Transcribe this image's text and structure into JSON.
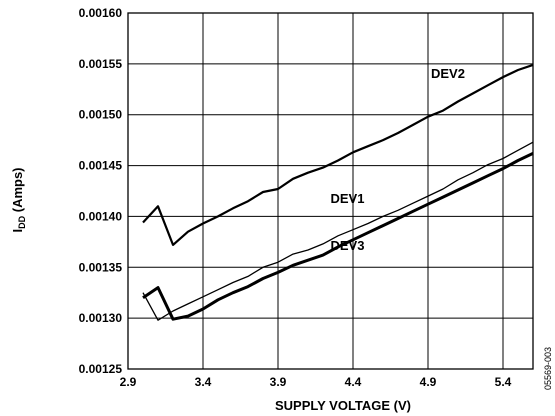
{
  "chart_data": {
    "type": "line",
    "xlabel": "SUPPLY VOLTAGE (V)",
    "ylabel_main": "I",
    "ylabel_sub": "DD",
    "ylabel_suffix": " (Amps)",
    "xlim": [
      2.9,
      5.6
    ],
    "ylim": [
      0.00125,
      0.0016
    ],
    "x_ticks": [
      2.9,
      3.4,
      3.9,
      4.4,
      4.9,
      5.4
    ],
    "x_tick_labels": [
      "2.9",
      "3.4",
      "3.9",
      "4.4",
      "4.9",
      "5.4"
    ],
    "y_ticks": [
      0.00125,
      0.0013,
      0.00135,
      0.0014,
      0.00145,
      0.0015,
      0.00155,
      0.0016
    ],
    "y_tick_labels": [
      "0.00125",
      "0.00130",
      "0.00135",
      "0.00140",
      "0.00145",
      "0.00150",
      "0.00155",
      "0.00160"
    ],
    "grid": true,
    "figure_id": "05569-003",
    "series": [
      {
        "name": "DEV2",
        "line_weight": "medium",
        "x": [
          3.0,
          3.1,
          3.2,
          3.3,
          3.4,
          3.5,
          3.6,
          3.7,
          3.8,
          3.9,
          4.0,
          4.1,
          4.2,
          4.3,
          4.4,
          4.5,
          4.6,
          4.7,
          4.8,
          4.9,
          5.0,
          5.1,
          5.2,
          5.3,
          5.4,
          5.5,
          5.6
        ],
        "y": [
          0.001394,
          0.00141,
          0.001372,
          0.001385,
          0.001393,
          0.0014,
          0.001408,
          0.001415,
          0.001424,
          0.001427,
          0.001437,
          0.001443,
          0.001448,
          0.001455,
          0.001463,
          0.001469,
          0.001475,
          0.001482,
          0.00149,
          0.001498,
          0.001504,
          0.001513,
          0.001521,
          0.001529,
          0.001537,
          0.001544,
          0.001549
        ]
      },
      {
        "name": "DEV1",
        "line_weight": "thin",
        "x": [
          3.0,
          3.1,
          3.2,
          3.3,
          3.4,
          3.5,
          3.6,
          3.7,
          3.8,
          3.9,
          4.0,
          4.1,
          4.2,
          4.3,
          4.4,
          4.5,
          4.6,
          4.7,
          4.8,
          4.9,
          5.0,
          5.1,
          5.2,
          5.3,
          5.4,
          5.5,
          5.6
        ],
        "y": [
          0.001325,
          0.001298,
          0.001307,
          0.001314,
          0.001321,
          0.001328,
          0.001335,
          0.001341,
          0.00135,
          0.001355,
          0.001363,
          0.001367,
          0.001373,
          0.001381,
          0.001387,
          0.001393,
          0.0014,
          0.001406,
          0.001413,
          0.00142,
          0.001427,
          0.001436,
          0.001443,
          0.001451,
          0.001457,
          0.001465,
          0.001473
        ]
      },
      {
        "name": "DEV3",
        "line_weight": "thick",
        "x": [
          3.0,
          3.1,
          3.2,
          3.3,
          3.4,
          3.5,
          3.6,
          3.7,
          3.8,
          3.9,
          4.0,
          4.1,
          4.2,
          4.3,
          4.4,
          4.5,
          4.6,
          4.7,
          4.8,
          4.9,
          5.0,
          5.1,
          5.2,
          5.3,
          5.4,
          5.5,
          5.6
        ],
        "y": [
          0.00132,
          0.00133,
          0.001299,
          0.001302,
          0.001309,
          0.001318,
          0.001325,
          0.001331,
          0.001339,
          0.001345,
          0.001352,
          0.001357,
          0.001362,
          0.00137,
          0.001377,
          0.001384,
          0.001391,
          0.001398,
          0.001405,
          0.001412,
          0.001419,
          0.001426,
          0.001433,
          0.00144,
          0.001447,
          0.001455,
          0.001462
        ]
      }
    ],
    "annotations": [
      {
        "text": "DEV2",
        "x": 4.92,
        "y": 0.001536
      },
      {
        "text": "DEV1",
        "x": 4.25,
        "y": 0.001413
      },
      {
        "text": "DEV3",
        "x": 4.25,
        "y": 0.001367
      }
    ]
  }
}
